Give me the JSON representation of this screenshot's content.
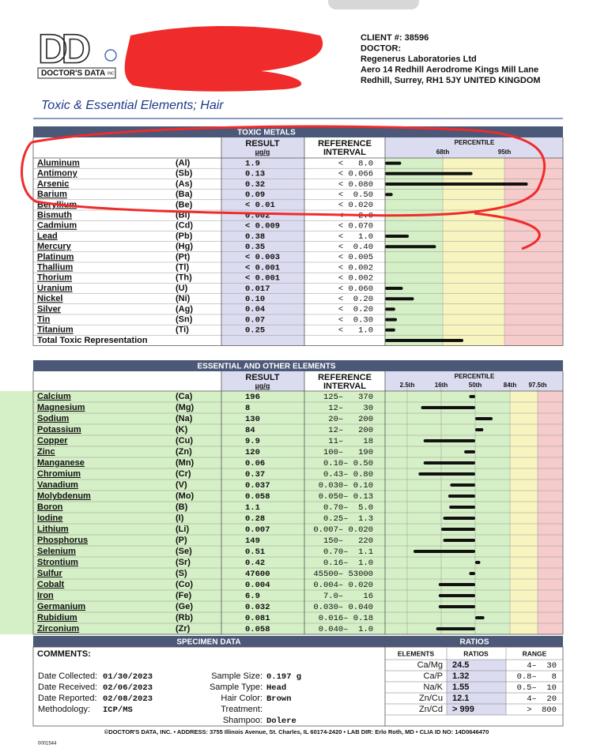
{
  "logo": {
    "letters": "DD",
    "name": "DOCTOR'S DATA",
    "suffix": "INC"
  },
  "client": [
    "CLIENT #: 38596",
    "DOCTOR:",
    "Regenerus Laboratories Ltd",
    "Aero 14 Redhill Aerodrome Kings Mill Lane",
    "Redhill, Surrey,  RH1 5JY UNITED KINGDOM"
  ],
  "title": "Toxic & Essential Elements; Hair",
  "toxic": {
    "title": "TOXIC METALS",
    "result_header": [
      "RESULT",
      "µg/g"
    ],
    "reference_header": [
      "REFERENCE",
      "INTERVAL"
    ],
    "percentile_header": "PERCENTILE",
    "range": [
      0,
      100
    ],
    "ticks": [
      {
        "value": 68,
        "label": "68th"
      },
      {
        "value": 95,
        "label": "95th"
      }
    ],
    "zone_colors": [
      "#d5efc6",
      "#f7f4bf",
      "#f5cbcb"
    ],
    "rows": [
      {
        "element": "Aluminum",
        "symbol": "(Al)",
        "result": "1.9",
        "reference": "<   8.0",
        "percentile": 19
      },
      {
        "element": "Antimony",
        "symbol": "(Sb)",
        "result": "0.13",
        "reference": "< 0.066",
        "percentile": 81
      },
      {
        "element": "Arsenic",
        "symbol": "(As)",
        "result": "0.32",
        "reference": "< 0.080",
        "percentile": 97
      },
      {
        "element": "Barium",
        "symbol": "(Ba)",
        "result": "0.09",
        "reference": "<  0.50",
        "percentile": 9
      },
      {
        "element": "Beryllium",
        "symbol": "(Be)",
        "result": "< 0.01",
        "reference": "< 0.020",
        "percentile": null
      },
      {
        "element": "Bismuth",
        "symbol": "(Bi)",
        "result": "0.002",
        "reference": "<   2.0",
        "percentile": null
      },
      {
        "element": "Cadmium",
        "symbol": "(Cd)",
        "result": "< 0.009",
        "reference": "< 0.070",
        "percentile": null
      },
      {
        "element": "Lead",
        "symbol": "(Pb)",
        "result": "0.38",
        "reference": "<   1.0",
        "percentile": 28
      },
      {
        "element": "Mercury",
        "symbol": "(Hg)",
        "result": "0.35",
        "reference": "<  0.40",
        "percentile": 60
      },
      {
        "element": "Platinum",
        "symbol": "(Pt)",
        "result": "< 0.003",
        "reference": "< 0.005",
        "percentile": null
      },
      {
        "element": "Thallium",
        "symbol": "(Tl)",
        "result": "< 0.001",
        "reference": "< 0.002",
        "percentile": null
      },
      {
        "element": "Thorium",
        "symbol": "(Th)",
        "result": "< 0.001",
        "reference": "< 0.002",
        "percentile": null
      },
      {
        "element": "Uranium",
        "symbol": "(U)",
        "result": "0.017",
        "reference": "< 0.060",
        "percentile": 21
      },
      {
        "element": "Nickel",
        "symbol": "(Ni)",
        "result": "0.10",
        "reference": "<  0.20",
        "percentile": 34
      },
      {
        "element": "Silver",
        "symbol": "(Ag)",
        "result": "0.04",
        "reference": "<  0.20",
        "percentile": 12
      },
      {
        "element": "Tin",
        "symbol": "(Sn)",
        "result": "0.07",
        "reference": "<  0.30",
        "percentile": 14
      },
      {
        "element": "Titanium",
        "symbol": "(Ti)",
        "result": "0.25",
        "reference": "<   1.0",
        "percentile": 12
      }
    ],
    "total": {
      "label": "Total Toxic Representation",
      "percentile": 77
    }
  },
  "essential": {
    "title": "ESSENTIAL AND OTHER ELEMENTS",
    "result_header": [
      "RESULT",
      "µg/g"
    ],
    "reference_header": [
      "REFERENCE",
      "INTERVAL"
    ],
    "percentile_header": "PERCENTILE",
    "range": [
      0,
      100
    ],
    "ticks": [
      {
        "value": 2.5,
        "label": "2.5th"
      },
      {
        "value": 16,
        "label": "16th"
      },
      {
        "value": 50,
        "label": "50th"
      },
      {
        "value": 84,
        "label": "84th"
      },
      {
        "value": 97.5,
        "label": "97.5th"
      }
    ],
    "zone_colors": [
      "#f5cbcb",
      "#f7f4bf",
      "#d5efc6",
      "#d5efc6",
      "#f7f4bf",
      "#f5cbcb"
    ],
    "rows": [
      {
        "element": "Calcium",
        "symbol": "(Ca)",
        "result": "196",
        "reference": "125–   370",
        "percentile": 44
      },
      {
        "element": "Magnesium",
        "symbol": "(Mg)",
        "result": "8",
        "reference": "12–    30",
        "percentile": 8
      },
      {
        "element": "Sodium",
        "symbol": "(Na)",
        "result": "130",
        "reference": "20–   200",
        "percentile": 67
      },
      {
        "element": "Potassium",
        "symbol": "(K)",
        "result": "84",
        "reference": "12–   200",
        "percentile": 58
      },
      {
        "element": "Copper",
        "symbol": "(Cu)",
        "result": "9.9",
        "reference": "11–    18",
        "percentile": 9
      },
      {
        "element": "Zinc",
        "symbol": "(Zn)",
        "result": "120",
        "reference": "100–   190",
        "percentile": 39
      },
      {
        "element": "Manganese",
        "symbol": "(Mn)",
        "result": "0.06",
        "reference": "0.10– 0.50",
        "percentile": 9
      },
      {
        "element": "Chromium",
        "symbol": "(Cr)",
        "result": "0.37",
        "reference": "0.43– 0.80",
        "percentile": 7
      },
      {
        "element": "Vanadium",
        "symbol": "(V)",
        "result": "0.037",
        "reference": "0.030– 0.10",
        "percentile": 25
      },
      {
        "element": "Molybdenum",
        "symbol": "(Mo)",
        "result": "0.058",
        "reference": "0.050– 0.13",
        "percentile": 23
      },
      {
        "element": "Boron",
        "symbol": "(B)",
        "result": "1.1",
        "reference": "0.70–  5.0",
        "percentile": 24
      },
      {
        "element": "Iodine",
        "symbol": "(I)",
        "result": "0.28",
        "reference": "0.25–  1.3",
        "percentile": 18
      },
      {
        "element": "Lithium",
        "symbol": "(Li)",
        "result": "0.007",
        "reference": "0.007– 0.020",
        "percentile": 16
      },
      {
        "element": "Phosphorus",
        "symbol": "(P)",
        "result": "149",
        "reference": "150–   220",
        "percentile": 18
      },
      {
        "element": "Selenium",
        "symbol": "(Se)",
        "result": "0.51",
        "reference": "0.70–  1.1",
        "percentile": 5
      },
      {
        "element": "Strontium",
        "symbol": "(Sr)",
        "result": "0.42",
        "reference": "0.16–  1.0",
        "percentile": 55
      },
      {
        "element": "Sulfur",
        "symbol": "(S)",
        "result": "47600",
        "reference": "45500– 53000",
        "percentile": 44
      },
      {
        "element": "Cobalt",
        "symbol": "(Co)",
        "result": "0.004",
        "reference": "0.004– 0.020",
        "percentile": 15
      },
      {
        "element": "Iron",
        "symbol": "(Fe)",
        "result": "6.9",
        "reference": "7.0–    16",
        "percentile": 15
      },
      {
        "element": "Germanium",
        "symbol": "(Ge)",
        "result": "0.032",
        "reference": "0.030– 0.040",
        "percentile": 15
      },
      {
        "element": "Rubidium",
        "symbol": "(Rb)",
        "result": "0.081",
        "reference": "0.016– 0.18",
        "percentile": 59
      },
      {
        "element": "Zirconium",
        "symbol": "(Zr)",
        "result": "0.058",
        "reference": "0.040–  1.0",
        "percentile": 14
      }
    ]
  },
  "specimen": {
    "title": "SPECIMEN DATA",
    "comments": "COMMENTS:",
    "left": [
      {
        "label": "Date Collected:",
        "value": "01/30/2023"
      },
      {
        "label": "Date Received:",
        "value": "02/06/2023"
      },
      {
        "label": "Date Reported:",
        "value": "02/08/2023"
      },
      {
        "label": "Methodology:",
        "value": "ICP/MS"
      }
    ],
    "right": [
      {
        "label": "Sample Size:",
        "value": "0.197 g"
      },
      {
        "label": "Sample Type:",
        "value": "Head"
      },
      {
        "label": "Hair Color:",
        "value": "Brown"
      },
      {
        "label": "Treatment:"
      },
      {
        "label": "Shampoo:",
        "value": "Dolere"
      }
    ]
  },
  "ratios": {
    "title": "RATIOS",
    "headers": [
      "ELEMENTS",
      "RATIOS",
      "RANGE"
    ],
    "rows": [
      [
        "Ca/Mg",
        "24.5",
        "4–  30"
      ],
      [
        "Ca/P",
        "1.32",
        "0.8–   8"
      ],
      [
        "Na/K",
        "1.55",
        "0.5–  10"
      ],
      [
        "Zn/Cu",
        "12.1",
        "4–  20"
      ],
      [
        "Zn/Cd",
        "> 999",
        ">  800"
      ]
    ]
  },
  "footer": "©DOCTOR'S DATA, INC. • ADDRESS: 3755 Illinois Avenue, St. Charles, IL 60174-2420 • LAB DIR: Erlo Roth, MD • CLIA ID NO: 14D0646470",
  "page_code": "0001544"
}
